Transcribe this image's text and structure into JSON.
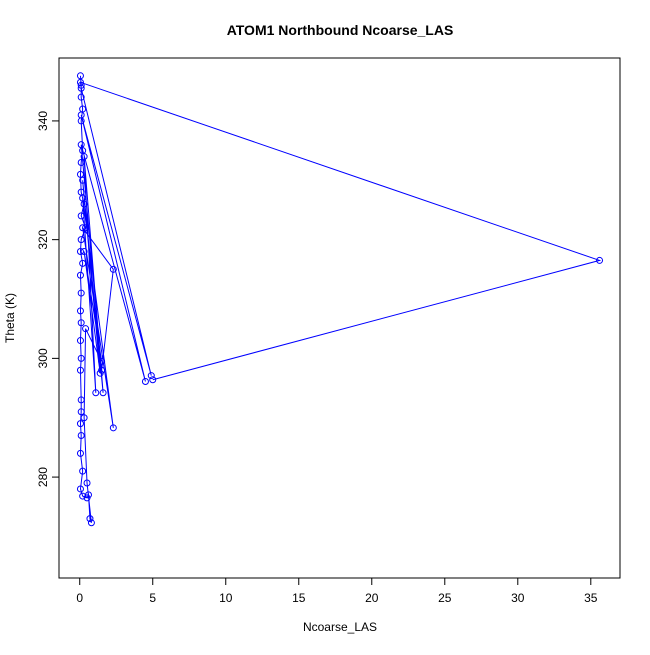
{
  "chart_data": {
    "type": "line",
    "title": "ATOM1 Northbound Ncoarse_LAS",
    "x_label": "Ncoarse_LAS",
    "y_label": "Theta (K)",
    "color": "#0000ff",
    "markers": true,
    "x": [
      0.05,
      0.1,
      0.1,
      0.2,
      0.1,
      0.2,
      0.1,
      0.05,
      0.1,
      0.3,
      0.1,
      0.4,
      0.1,
      0.05,
      0.2,
      0.05,
      0.1,
      0.05,
      0.1,
      0.05,
      0.1,
      0.05,
      0.1,
      0.1,
      0.05,
      0.1,
      0.05,
      0.2,
      0.05,
      0.2,
      0.5,
      0.6,
      0.7,
      0.8,
      0.5,
      0.3,
      0.4,
      1.5,
      0.3,
      1.4,
      0.2,
      1.6,
      0.3,
      1.1,
      0.2,
      2.3,
      0.2,
      2.3,
      1.5,
      0.1,
      4.5,
      0.1,
      4.9,
      0.1,
      0.05,
      35.6,
      5.0
    ],
    "values": [
      347.6,
      346,
      344,
      342,
      340,
      335,
      333,
      331,
      328,
      326,
      324,
      322,
      320,
      318,
      316,
      314,
      311,
      308,
      306,
      303,
      300,
      298,
      293,
      291,
      289,
      287,
      284,
      281,
      278,
      276.8,
      276.5,
      277,
      273,
      272.3,
      279,
      290,
      305,
      299.5,
      318,
      297.5,
      330,
      294.2,
      334,
      294.2,
      327,
      288.3,
      322,
      315,
      298,
      336,
      296.1,
      341,
      297.1,
      345.5,
      346.5,
      316.5,
      296.4
    ],
    "xlim": [
      -1.42,
      37.0
    ],
    "ylim": [
      263,
      350.6
    ],
    "xticks": [
      0,
      5,
      10,
      15,
      20,
      25,
      30,
      35
    ],
    "yticks": [
      280,
      300,
      320,
      340
    ]
  }
}
